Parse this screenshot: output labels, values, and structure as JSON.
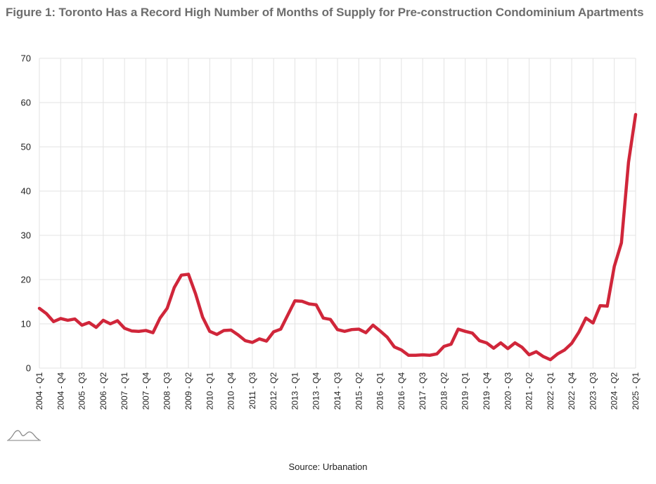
{
  "title": "Figure 1: Toronto Has a Record High Number of Months of Supply for Pre-construction Condominium Apartments",
  "source": "Source: Urbanation",
  "line_color": "#d0263a",
  "grid_color": "#e3e3e3",
  "chart_data": {
    "type": "line",
    "title": "Figure 1: Toronto Has a Record High Number of Months of Supply for Pre-construction Condominium Apartments",
    "xlabel": "",
    "ylabel": "",
    "ylim": [
      0,
      70
    ],
    "yticks": [
      0,
      10,
      20,
      30,
      40,
      50,
      60,
      70
    ],
    "grid": true,
    "legend": "none",
    "x_tick_labels": [
      "2004 - Q1",
      "2004 - Q4",
      "2005 - Q3",
      "2006 - Q2",
      "2007 - Q1",
      "2007 - Q4",
      "2008 - Q3",
      "2009 - Q2",
      "2010 - Q1",
      "2010 - Q4",
      "2011 - Q3",
      "2012 - Q2",
      "2013 - Q1",
      "2013 - Q4",
      "2014 - Q3",
      "2015 - Q2",
      "2016 - Q1",
      "2016 - Q4",
      "2017 - Q3",
      "2018 - Q2",
      "2019 - Q1",
      "2019 - Q4",
      "2020 - Q3",
      "2021 - Q2",
      "2022 - Q1",
      "2022 - Q4",
      "2023 - Q3",
      "2024 - Q2",
      "2025 - Q1"
    ],
    "categories": [
      "2004 - Q1",
      "2004 - Q2",
      "2004 - Q3",
      "2004 - Q4",
      "2005 - Q1",
      "2005 - Q2",
      "2005 - Q3",
      "2005 - Q4",
      "2006 - Q1",
      "2006 - Q2",
      "2006 - Q3",
      "2006 - Q4",
      "2007 - Q1",
      "2007 - Q2",
      "2007 - Q3",
      "2007 - Q4",
      "2008 - Q1",
      "2008 - Q2",
      "2008 - Q3",
      "2008 - Q4",
      "2009 - Q1",
      "2009 - Q2",
      "2009 - Q3",
      "2009 - Q4",
      "2010 - Q1",
      "2010 - Q2",
      "2010 - Q3",
      "2010 - Q4",
      "2011 - Q1",
      "2011 - Q2",
      "2011 - Q3",
      "2011 - Q4",
      "2012 - Q1",
      "2012 - Q2",
      "2012 - Q3",
      "2012 - Q4",
      "2013 - Q1",
      "2013 - Q2",
      "2013 - Q3",
      "2013 - Q4",
      "2014 - Q1",
      "2014 - Q2",
      "2014 - Q3",
      "2014 - Q4",
      "2015 - Q1",
      "2015 - Q2",
      "2015 - Q3",
      "2015 - Q4",
      "2016 - Q1",
      "2016 - Q2",
      "2016 - Q3",
      "2016 - Q4",
      "2017 - Q1",
      "2017 - Q2",
      "2017 - Q3",
      "2017 - Q4",
      "2018 - Q1",
      "2018 - Q2",
      "2018 - Q3",
      "2018 - Q4",
      "2019 - Q1",
      "2019 - Q2",
      "2019 - Q3",
      "2019 - Q4",
      "2020 - Q1",
      "2020 - Q2",
      "2020 - Q3",
      "2020 - Q4",
      "2021 - Q1",
      "2021 - Q2",
      "2021 - Q3",
      "2021 - Q4",
      "2022 - Q1",
      "2022 - Q2",
      "2022 - Q3",
      "2022 - Q4",
      "2023 - Q1",
      "2023 - Q2",
      "2023 - Q3",
      "2023 - Q4",
      "2024 - Q1",
      "2024 - Q2",
      "2024 - Q3",
      "2024 - Q4",
      "2025 - Q1"
    ],
    "series": [
      {
        "values": [
          13.5,
          12.3,
          10.5,
          11.2,
          10.8,
          11.1,
          9.7,
          10.3,
          9.2,
          10.8,
          10.0,
          10.7,
          9.0,
          8.4,
          8.3,
          8.5,
          8.0,
          11.3,
          13.5,
          18.2,
          21.0,
          21.2,
          16.8,
          11.5,
          8.3,
          7.6,
          8.5,
          8.6,
          7.5,
          6.2,
          5.8,
          6.6,
          6.1,
          8.2,
          8.8,
          12.0,
          15.2,
          15.1,
          14.5,
          14.3,
          11.3,
          11.0,
          8.7,
          8.3,
          8.7,
          8.8,
          8.0,
          9.7,
          8.4,
          7.0,
          4.8,
          4.1,
          2.9,
          2.9,
          3.0,
          2.9,
          3.2,
          4.9,
          5.4,
          8.8,
          8.3,
          7.9,
          6.2,
          5.7,
          4.5,
          5.7,
          4.4,
          5.7,
          4.7,
          3.0,
          3.7,
          2.6,
          1.9,
          3.2,
          4.1,
          5.6,
          8.1,
          11.3,
          10.2,
          14.1,
          14.0,
          23.0,
          28.3,
          46.5,
          57.3
        ]
      }
    ]
  }
}
